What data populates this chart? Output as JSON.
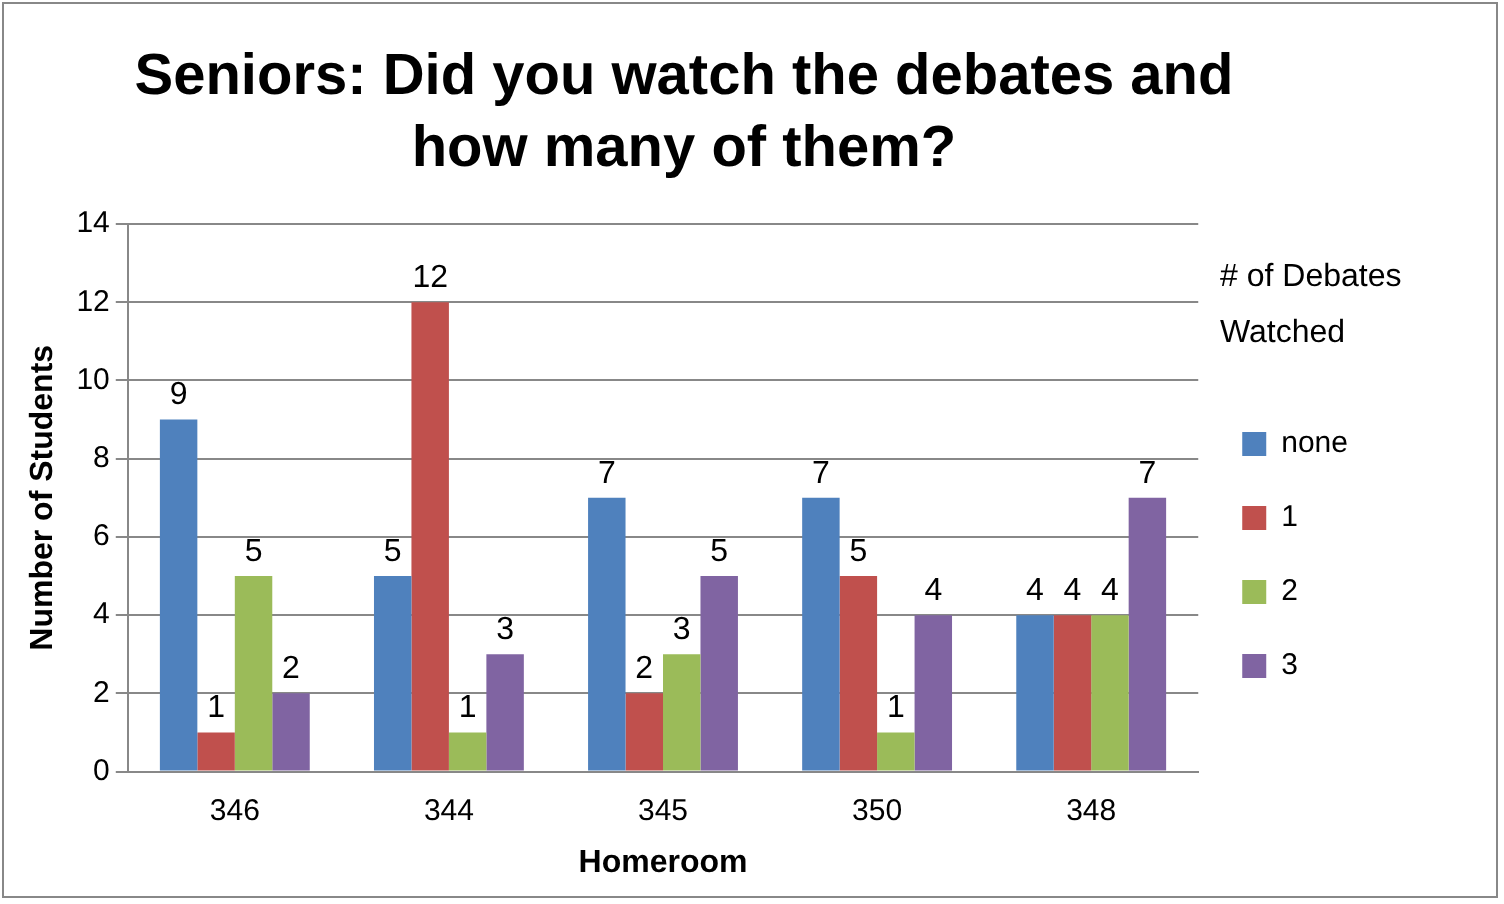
{
  "chart_data": {
    "type": "bar",
    "title": "Seniors: Did you watch the debates and how many of them?",
    "xlabel": "Homeroom",
    "ylabel": "Number of Students",
    "legend_title": "# of Debates Watched",
    "categories": [
      "346",
      "344",
      "345",
      "350",
      "348"
    ],
    "series": [
      {
        "name": "none",
        "color": "#4f81bd",
        "values": [
          9,
          5,
          7,
          7,
          4
        ]
      },
      {
        "name": "1",
        "color": "#c0504d",
        "values": [
          1,
          12,
          2,
          5,
          4
        ]
      },
      {
        "name": "2",
        "color": "#9bbb59",
        "values": [
          5,
          1,
          3,
          1,
          4
        ]
      },
      {
        "name": "3",
        "color": "#8064a2",
        "values": [
          2,
          3,
          5,
          4,
          7
        ]
      }
    ],
    "ylim": [
      0,
      14
    ],
    "yticks": [
      0,
      2,
      4,
      6,
      8,
      10,
      12,
      14
    ],
    "grid": "y",
    "legend": "right",
    "data_labels": true
  }
}
